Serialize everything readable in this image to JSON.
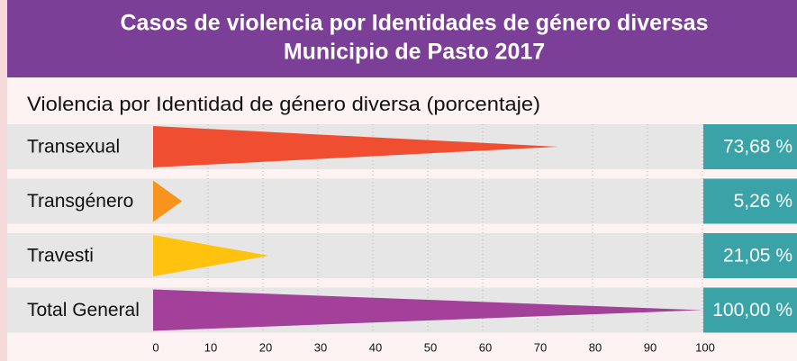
{
  "chart_data": {
    "type": "bar",
    "title": [
      "Casos de violencia por Identidades de género diversas",
      "Municipio de Pasto 2017"
    ],
    "subtitle": "Violencia por Identidad de género diversa (porcentaje)",
    "categories": [
      "Transexual",
      "Transgénero",
      "Travesti",
      "Total General"
    ],
    "values": [
      73.68,
      5.26,
      21.05,
      100
    ],
    "value_labels": [
      "73,68 %",
      "5,26 %",
      "21,05 %",
      "100,00 %"
    ],
    "colors": [
      "#f04e30",
      "#f7941d",
      "#ffc20e",
      "#a3409a"
    ],
    "xlim": [
      0,
      100
    ],
    "xticks": [
      0,
      10,
      20,
      30,
      40,
      50,
      60,
      70,
      80,
      90,
      100
    ],
    "grid": true
  }
}
